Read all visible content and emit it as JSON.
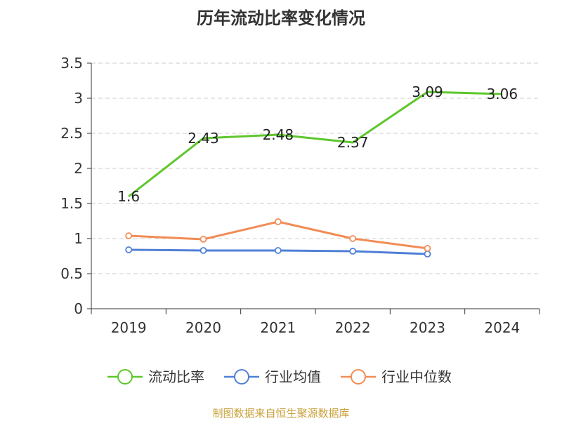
{
  "chart_data": {
    "type": "line",
    "title": "历年流动比率变化情况",
    "categories": [
      "2019",
      "2020",
      "2021",
      "2022",
      "2023",
      "2024"
    ],
    "ylim": [
      0,
      3.5
    ],
    "yticks": [
      "0",
      "0.5",
      "1",
      "1.5",
      "2",
      "2.5",
      "3",
      "3.5"
    ],
    "grid": true,
    "legend_position": "bottom",
    "series": [
      {
        "name": "流动比率",
        "color": "#5ec72c",
        "values": [
          1.6,
          2.43,
          2.48,
          2.37,
          3.09,
          3.06
        ],
        "data_labels": [
          "1.6",
          "2.43",
          "2.48",
          "2.37",
          "3.09",
          "3.06"
        ],
        "show_markers": false
      },
      {
        "name": "行业均值",
        "color": "#4f80d6",
        "values": [
          0.84,
          0.83,
          0.83,
          0.82,
          0.78,
          null
        ],
        "show_markers": true
      },
      {
        "name": "行业中位数",
        "color": "#f28c55",
        "values": [
          1.04,
          0.99,
          1.24,
          1.0,
          0.86,
          null
        ],
        "show_markers": true
      }
    ]
  },
  "source_note": "制图数据来自恒生聚源数据库"
}
